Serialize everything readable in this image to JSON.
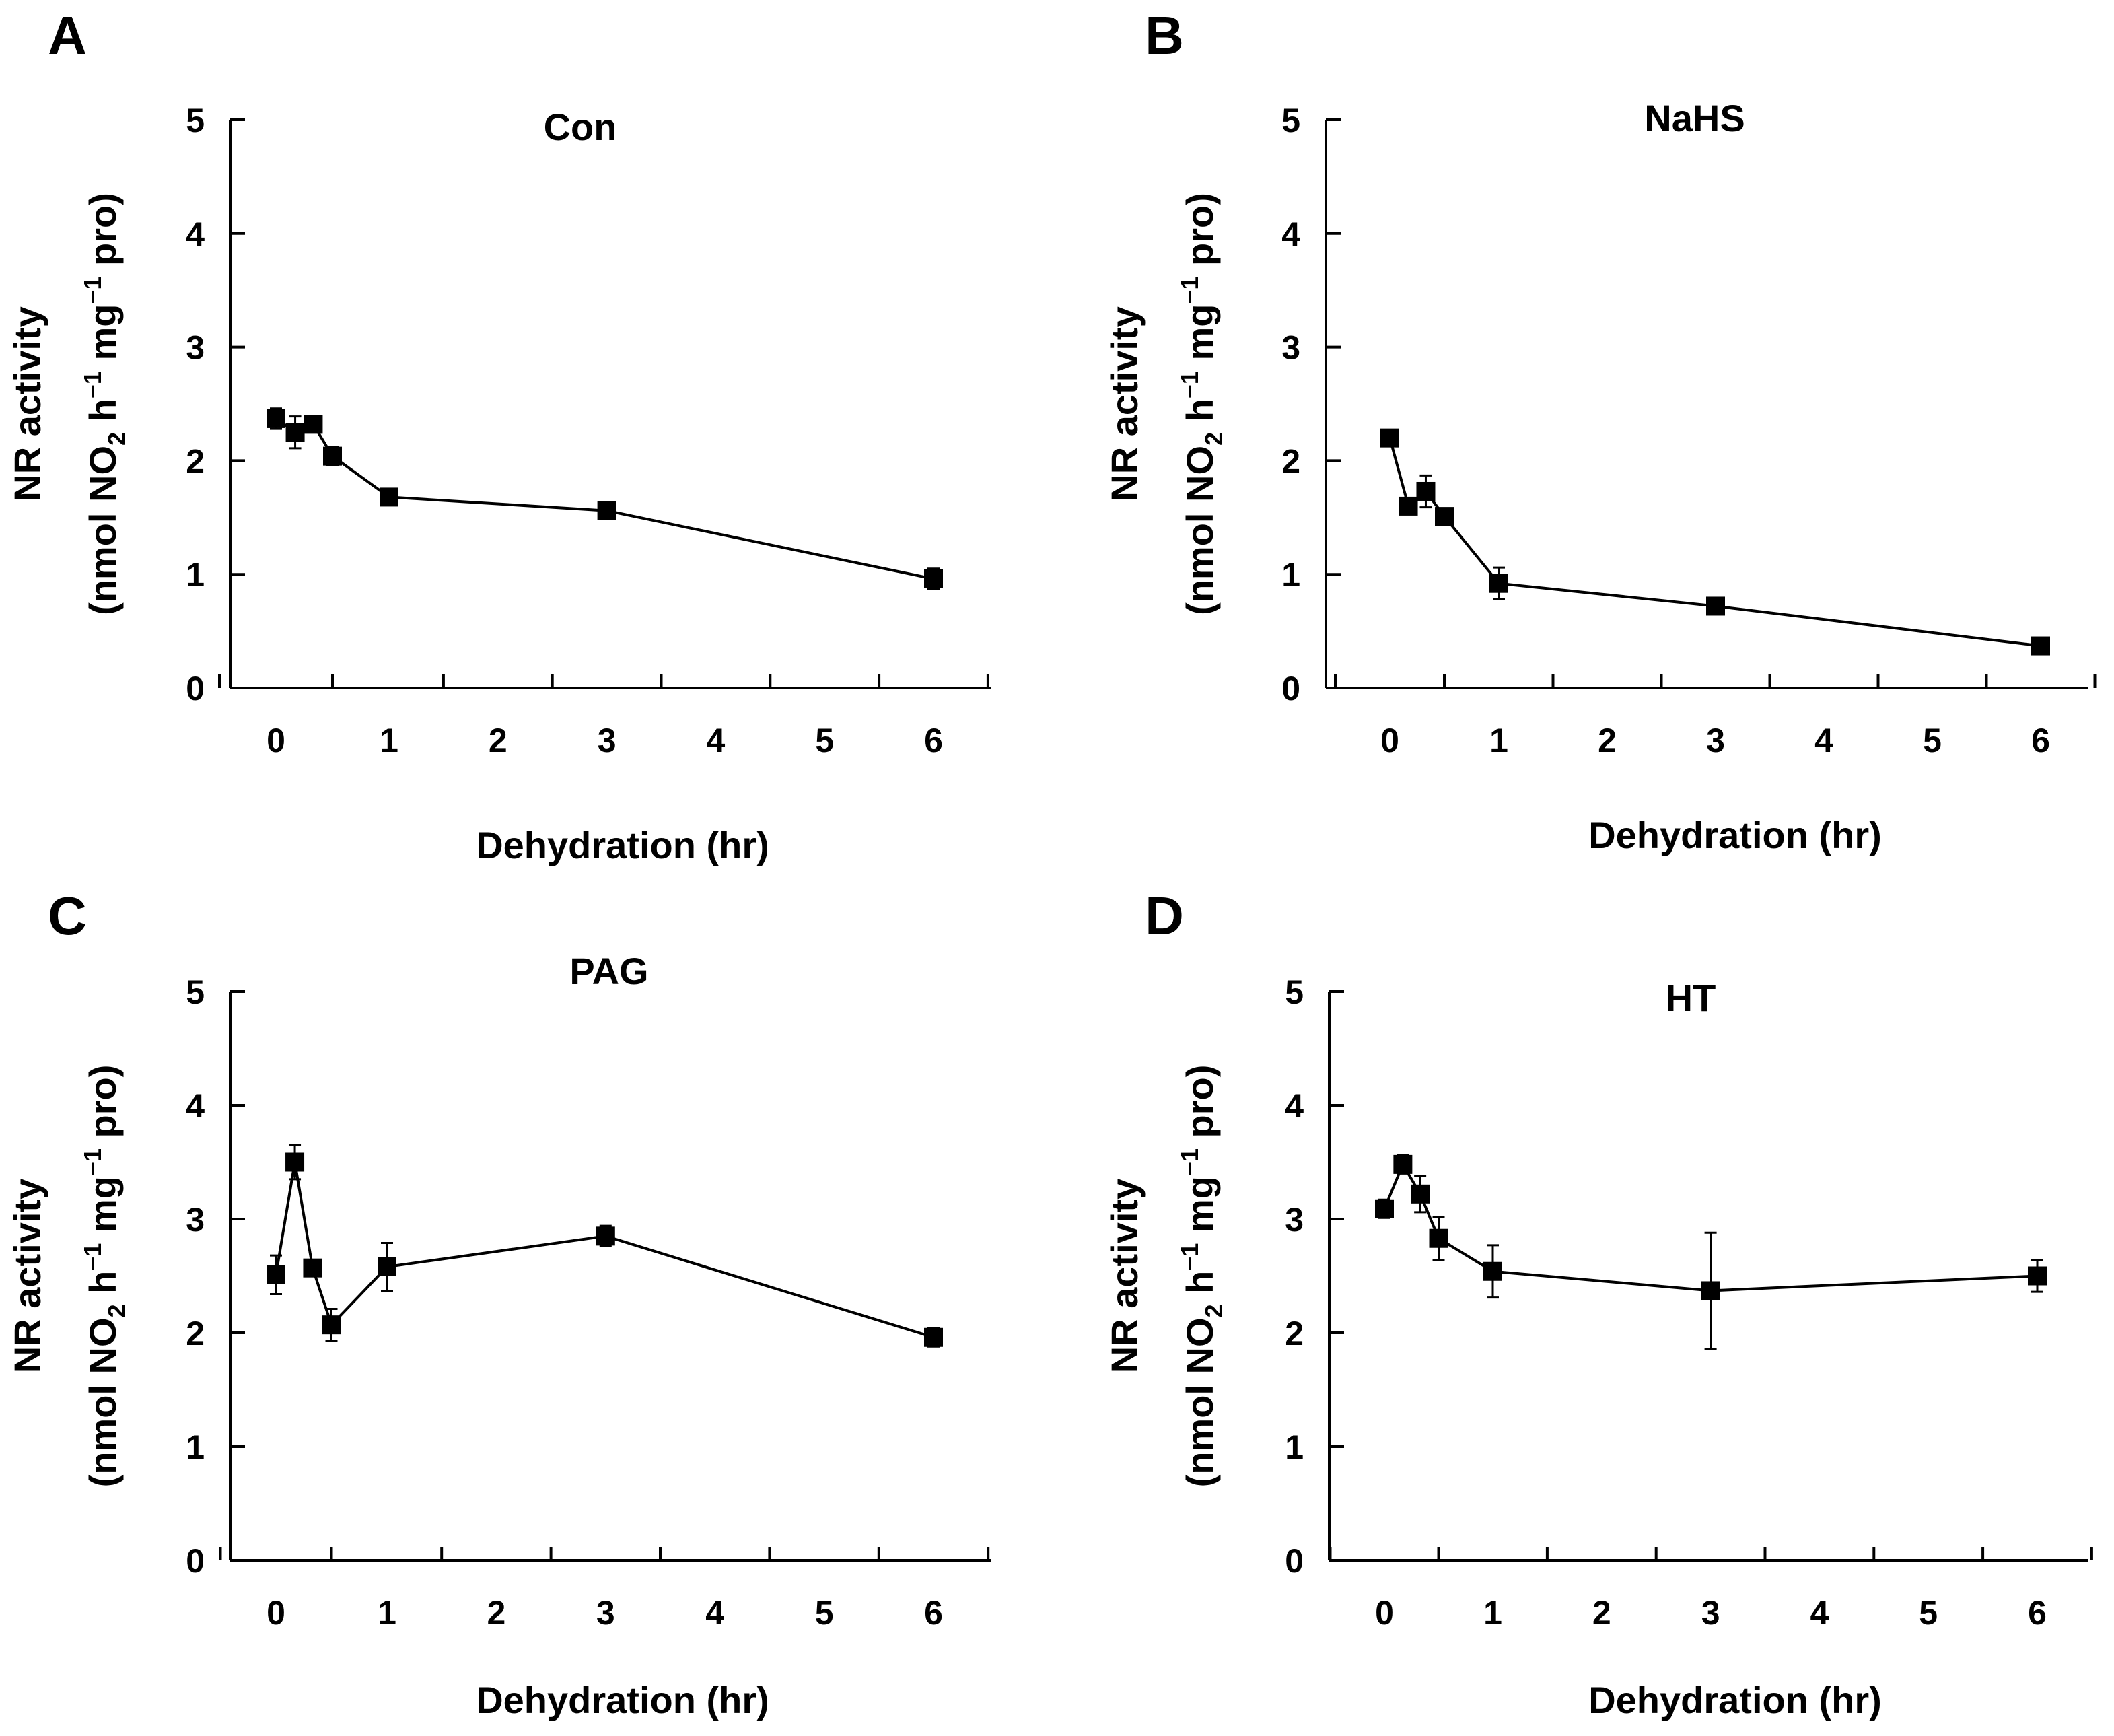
{
  "figure": {
    "panels": [
      "A",
      "B",
      "C",
      "D"
    ]
  },
  "chart_data": [
    {
      "panel": "A",
      "type": "line",
      "title": "Con",
      "xlabel": "Dehydration (hr)",
      "ylabel_line1": "NR activity",
      "ylabel_line2": "(nmol NO2 h−1 mg−1 pro)",
      "ylabel_parts": {
        "pre": "(nmol NO",
        "sub": "2",
        "mid1": " h",
        "sup1": "−1",
        "mid2": " mg",
        "sup2": "−1",
        "post": " pro)"
      },
      "x_tick_labels": [
        "0",
        "1",
        "2",
        "3",
        "4",
        "5",
        "6"
      ],
      "y_tick_labels": [
        "0",
        "1",
        "2",
        "3",
        "4",
        "5"
      ],
      "ylim": [
        0,
        5
      ],
      "series": [
        {
          "name": "Con",
          "marker": "square",
          "x_labels": [
            "0",
            "0.17",
            "0.33",
            "0.5",
            "1",
            "3",
            "6"
          ],
          "x_positions": [
            0,
            0.17,
            0.33,
            0.5,
            1,
            3,
            6
          ],
          "values": [
            2.37,
            2.25,
            2.32,
            2.04,
            1.68,
            1.56,
            0.96
          ],
          "errors": [
            0.09,
            0.14,
            0.07,
            0.08,
            0.05,
            0.07,
            0.09
          ]
        }
      ]
    },
    {
      "panel": "B",
      "type": "line",
      "title": "NaHS",
      "xlabel": "Dehydration (hr)",
      "ylabel_line1": "NR activity",
      "ylabel_line2": "(nmol NO2 h−1 mg−1 pro)",
      "ylabel_parts": {
        "pre": "(nmol NO",
        "sub": "2",
        "mid1": " h",
        "sup1": "−1",
        "mid2": " mg",
        "sup2": "−1",
        "post": " pro)"
      },
      "x_tick_labels": [
        "0",
        "1",
        "2",
        "3",
        "4",
        "5",
        "6"
      ],
      "y_tick_labels": [
        "0",
        "1",
        "2",
        "3",
        "4",
        "5"
      ],
      "ylim": [
        0,
        5
      ],
      "series": [
        {
          "name": "NaHS",
          "marker": "square",
          "x_labels": [
            "0",
            "0.17",
            "0.33",
            "0.5",
            "1",
            "3",
            "6"
          ],
          "x_positions": [
            0,
            0.17,
            0.33,
            0.5,
            1,
            3,
            6
          ],
          "values": [
            2.2,
            1.6,
            1.73,
            1.51,
            0.92,
            0.72,
            0.37
          ],
          "errors": [
            0.04,
            0.07,
            0.14,
            0.05,
            0.14,
            0.07,
            0.04
          ]
        }
      ]
    },
    {
      "panel": "C",
      "type": "line",
      "title": "PAG",
      "xlabel": "Dehydration (hr)",
      "ylabel_line1": "NR activity",
      "ylabel_line2": "(nmol NO2 h−1 mg−1 pro)",
      "ylabel_parts": {
        "pre": "(nmol NO",
        "sub": "2",
        "mid1": " h",
        "sup1": "−1",
        "mid2": " mg",
        "sup2": "−1",
        "post": " pro)"
      },
      "x_tick_labels": [
        "0",
        "1",
        "2",
        "3",
        "4",
        "5",
        "6"
      ],
      "y_tick_labels": [
        "0",
        "1",
        "2",
        "3",
        "4",
        "5"
      ],
      "ylim": [
        0,
        5
      ],
      "series": [
        {
          "name": "PAG",
          "marker": "square",
          "x_labels": [
            "0",
            "0.17",
            "0.33",
            "0.5",
            "1",
            "3",
            "6"
          ],
          "x_positions": [
            0,
            0.17,
            0.33,
            0.5,
            1,
            3,
            6
          ],
          "values": [
            2.51,
            3.5,
            2.57,
            2.07,
            2.58,
            2.85,
            1.96
          ],
          "errors": [
            0.17,
            0.15,
            0.05,
            0.14,
            0.21,
            0.09,
            0.08
          ]
        }
      ]
    },
    {
      "panel": "D",
      "type": "line",
      "title": "HT",
      "xlabel": "Dehydration (hr)",
      "ylabel_line1": "NR activity",
      "ylabel_line2": "(nmol NO2 h−1 mg−1 pro)",
      "ylabel_parts": {
        "pre": "(nmol NO",
        "sub": "2",
        "mid1": " h",
        "sup1": "−1",
        "mid2": " mg",
        "sup2": "−1",
        "post": " pro)"
      },
      "x_tick_labels": [
        "0",
        "1",
        "2",
        "3",
        "4",
        "5",
        "6"
      ],
      "y_tick_labels": [
        "0",
        "1",
        "2",
        "3",
        "4",
        "5"
      ],
      "ylim": [
        0,
        5
      ],
      "series": [
        {
          "name": "HT",
          "marker": "square",
          "x_labels": [
            "0",
            "0.17",
            "0.33",
            "0.5",
            "1",
            "3",
            "6"
          ],
          "x_positions": [
            0,
            0.17,
            0.33,
            0.5,
            1,
            3,
            6
          ],
          "values": [
            3.09,
            3.48,
            3.22,
            2.83,
            2.54,
            2.37,
            2.5
          ],
          "errors": [
            0.08,
            0.08,
            0.16,
            0.19,
            0.23,
            0.51,
            0.14
          ]
        }
      ]
    }
  ]
}
